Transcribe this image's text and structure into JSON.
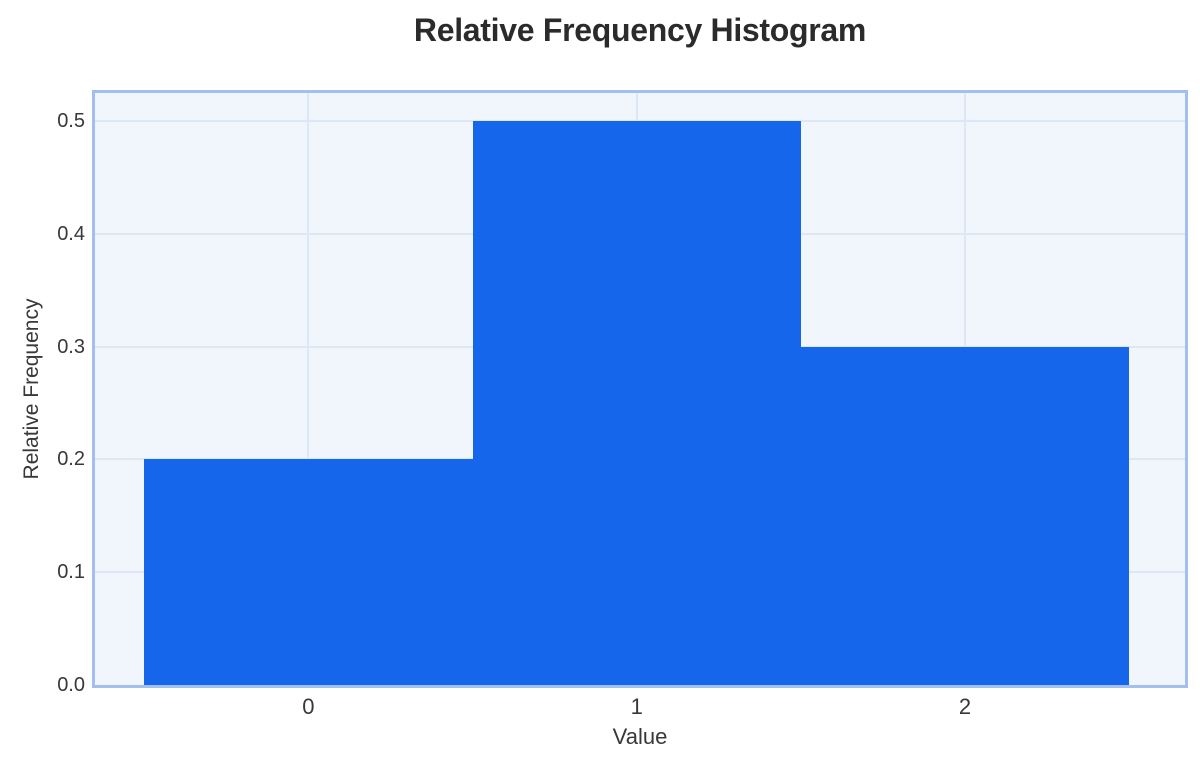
{
  "chart_data": {
    "type": "bar",
    "subtype": "relative-frequency-histogram",
    "title": "Relative Frequency Histogram",
    "xlabel": "Value",
    "ylabel": "Relative Frequency",
    "bin_edges": [
      -0.5,
      0.5,
      1.5,
      2.5
    ],
    "categories": [
      0,
      1,
      2
    ],
    "values": [
      0.2,
      0.5,
      0.3
    ],
    "xticks": [
      {
        "value": 0,
        "label": "0"
      },
      {
        "value": 1,
        "label": "1"
      },
      {
        "value": 2,
        "label": "2"
      }
    ],
    "yticks": [
      {
        "value": 0.0,
        "label": "0.0"
      },
      {
        "value": 0.1,
        "label": "0.1"
      },
      {
        "value": 0.2,
        "label": "0.2"
      },
      {
        "value": 0.3,
        "label": "0.3"
      },
      {
        "value": 0.4,
        "label": "0.4"
      },
      {
        "value": 0.5,
        "label": "0.5"
      }
    ],
    "xlim": [
      -0.65,
      2.67
    ],
    "ylim": [
      0,
      0.525
    ],
    "grid": true,
    "legend": false,
    "colors": {
      "bar": "#1566eb",
      "plot_background": "#f1f5fc",
      "plot_border": "#a3bff0",
      "gridline": "#dde8f7",
      "title_text": "#2b2b2b",
      "axis_text": "#383838"
    }
  }
}
